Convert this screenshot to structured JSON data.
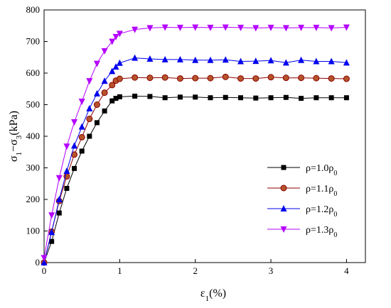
{
  "chart_data": {
    "type": "line",
    "xlabel": "ε1(%)",
    "xlabel_parts": {
      "main": "ε",
      "sub": "1",
      "rest": "(%)"
    },
    "ylabel": "σ1−σ3(kPa)",
    "ylabel_parts": {
      "a": "σ",
      "a_sub": "1",
      "mid": "−σ",
      "b_sub": "3",
      "rest": "(kPa)"
    },
    "xlim": [
      0,
      4.25
    ],
    "ylim": [
      0,
      800
    ],
    "xticks": [
      0,
      1,
      2,
      3,
      4
    ],
    "yticks": [
      0,
      100,
      200,
      300,
      400,
      500,
      600,
      700,
      800
    ],
    "grid": false,
    "legend_position": "center-right",
    "series": [
      {
        "name": "ρ=1.0ρ0",
        "legend_parts": {
          "main": "ρ=1.0ρ",
          "sub": "0"
        },
        "color": "#000000",
        "marker": "square",
        "x": [
          0,
          0.1,
          0.2,
          0.3,
          0.4,
          0.5,
          0.6,
          0.7,
          0.8,
          0.9,
          0.95,
          1.0,
          1.2,
          1.4,
          1.6,
          1.8,
          2.0,
          2.2,
          2.4,
          2.6,
          2.8,
          3.0,
          3.2,
          3.4,
          3.6,
          3.8,
          4.0
        ],
        "y": [
          0,
          67,
          157,
          235,
          298,
          353,
          400,
          443,
          480,
          512,
          520,
          525,
          527,
          526,
          522,
          524,
          524,
          522,
          523,
          522,
          521,
          522,
          523,
          520,
          522,
          522,
          522
        ]
      },
      {
        "name": "ρ=1.1ρ0",
        "legend_parts": {
          "main": "ρ=1.1ρ",
          "sub": "0"
        },
        "color": "#8b0000",
        "marker": "circle",
        "x": [
          0,
          0.1,
          0.2,
          0.3,
          0.4,
          0.5,
          0.6,
          0.7,
          0.8,
          0.9,
          0.95,
          1.0,
          1.2,
          1.4,
          1.6,
          1.8,
          2.0,
          2.2,
          2.4,
          2.6,
          2.8,
          3.0,
          3.2,
          3.4,
          3.6,
          3.8,
          4.0
        ],
        "y": [
          0,
          98,
          195,
          273,
          342,
          397,
          455,
          500,
          538,
          562,
          576,
          582,
          586,
          585,
          586,
          583,
          584,
          584,
          588,
          583,
          583,
          587,
          585,
          585,
          584,
          583,
          582
        ]
      },
      {
        "name": "ρ=1.2ρ0",
        "legend_parts": {
          "main": "ρ=1.2ρ",
          "sub": "0"
        },
        "color": "#0000ee",
        "marker": "triangle-up",
        "x": [
          0,
          0.1,
          0.2,
          0.3,
          0.4,
          0.5,
          0.6,
          0.7,
          0.8,
          0.9,
          0.95,
          1.0,
          1.2,
          1.4,
          1.6,
          1.8,
          2.0,
          2.2,
          2.4,
          2.6,
          2.8,
          3.0,
          3.2,
          3.4,
          3.6,
          3.8,
          4.0
        ],
        "y": [
          0,
          96,
          200,
          290,
          370,
          430,
          488,
          535,
          575,
          606,
          620,
          632,
          648,
          645,
          643,
          643,
          641,
          641,
          642,
          637,
          638,
          640,
          633,
          641,
          637,
          637,
          633
        ]
      },
      {
        "name": "ρ=1.3ρ0",
        "legend_parts": {
          "main": "ρ=1.3ρ",
          "sub": "0"
        },
        "color": "#b400ff",
        "marker": "triangle-down",
        "x": [
          0,
          0.1,
          0.2,
          0.3,
          0.4,
          0.5,
          0.6,
          0.7,
          0.8,
          0.9,
          0.95,
          1.0,
          1.2,
          1.4,
          1.6,
          1.8,
          2.0,
          2.2,
          2.4,
          2.6,
          2.8,
          3.0,
          3.2,
          3.4,
          3.6,
          3.8,
          4.0
        ],
        "y": [
          15,
          150,
          268,
          368,
          445,
          510,
          575,
          630,
          670,
          700,
          715,
          725,
          738,
          743,
          745,
          744,
          745,
          744,
          745,
          744,
          743,
          744,
          743,
          744,
          744,
          743,
          745
        ]
      }
    ]
  }
}
